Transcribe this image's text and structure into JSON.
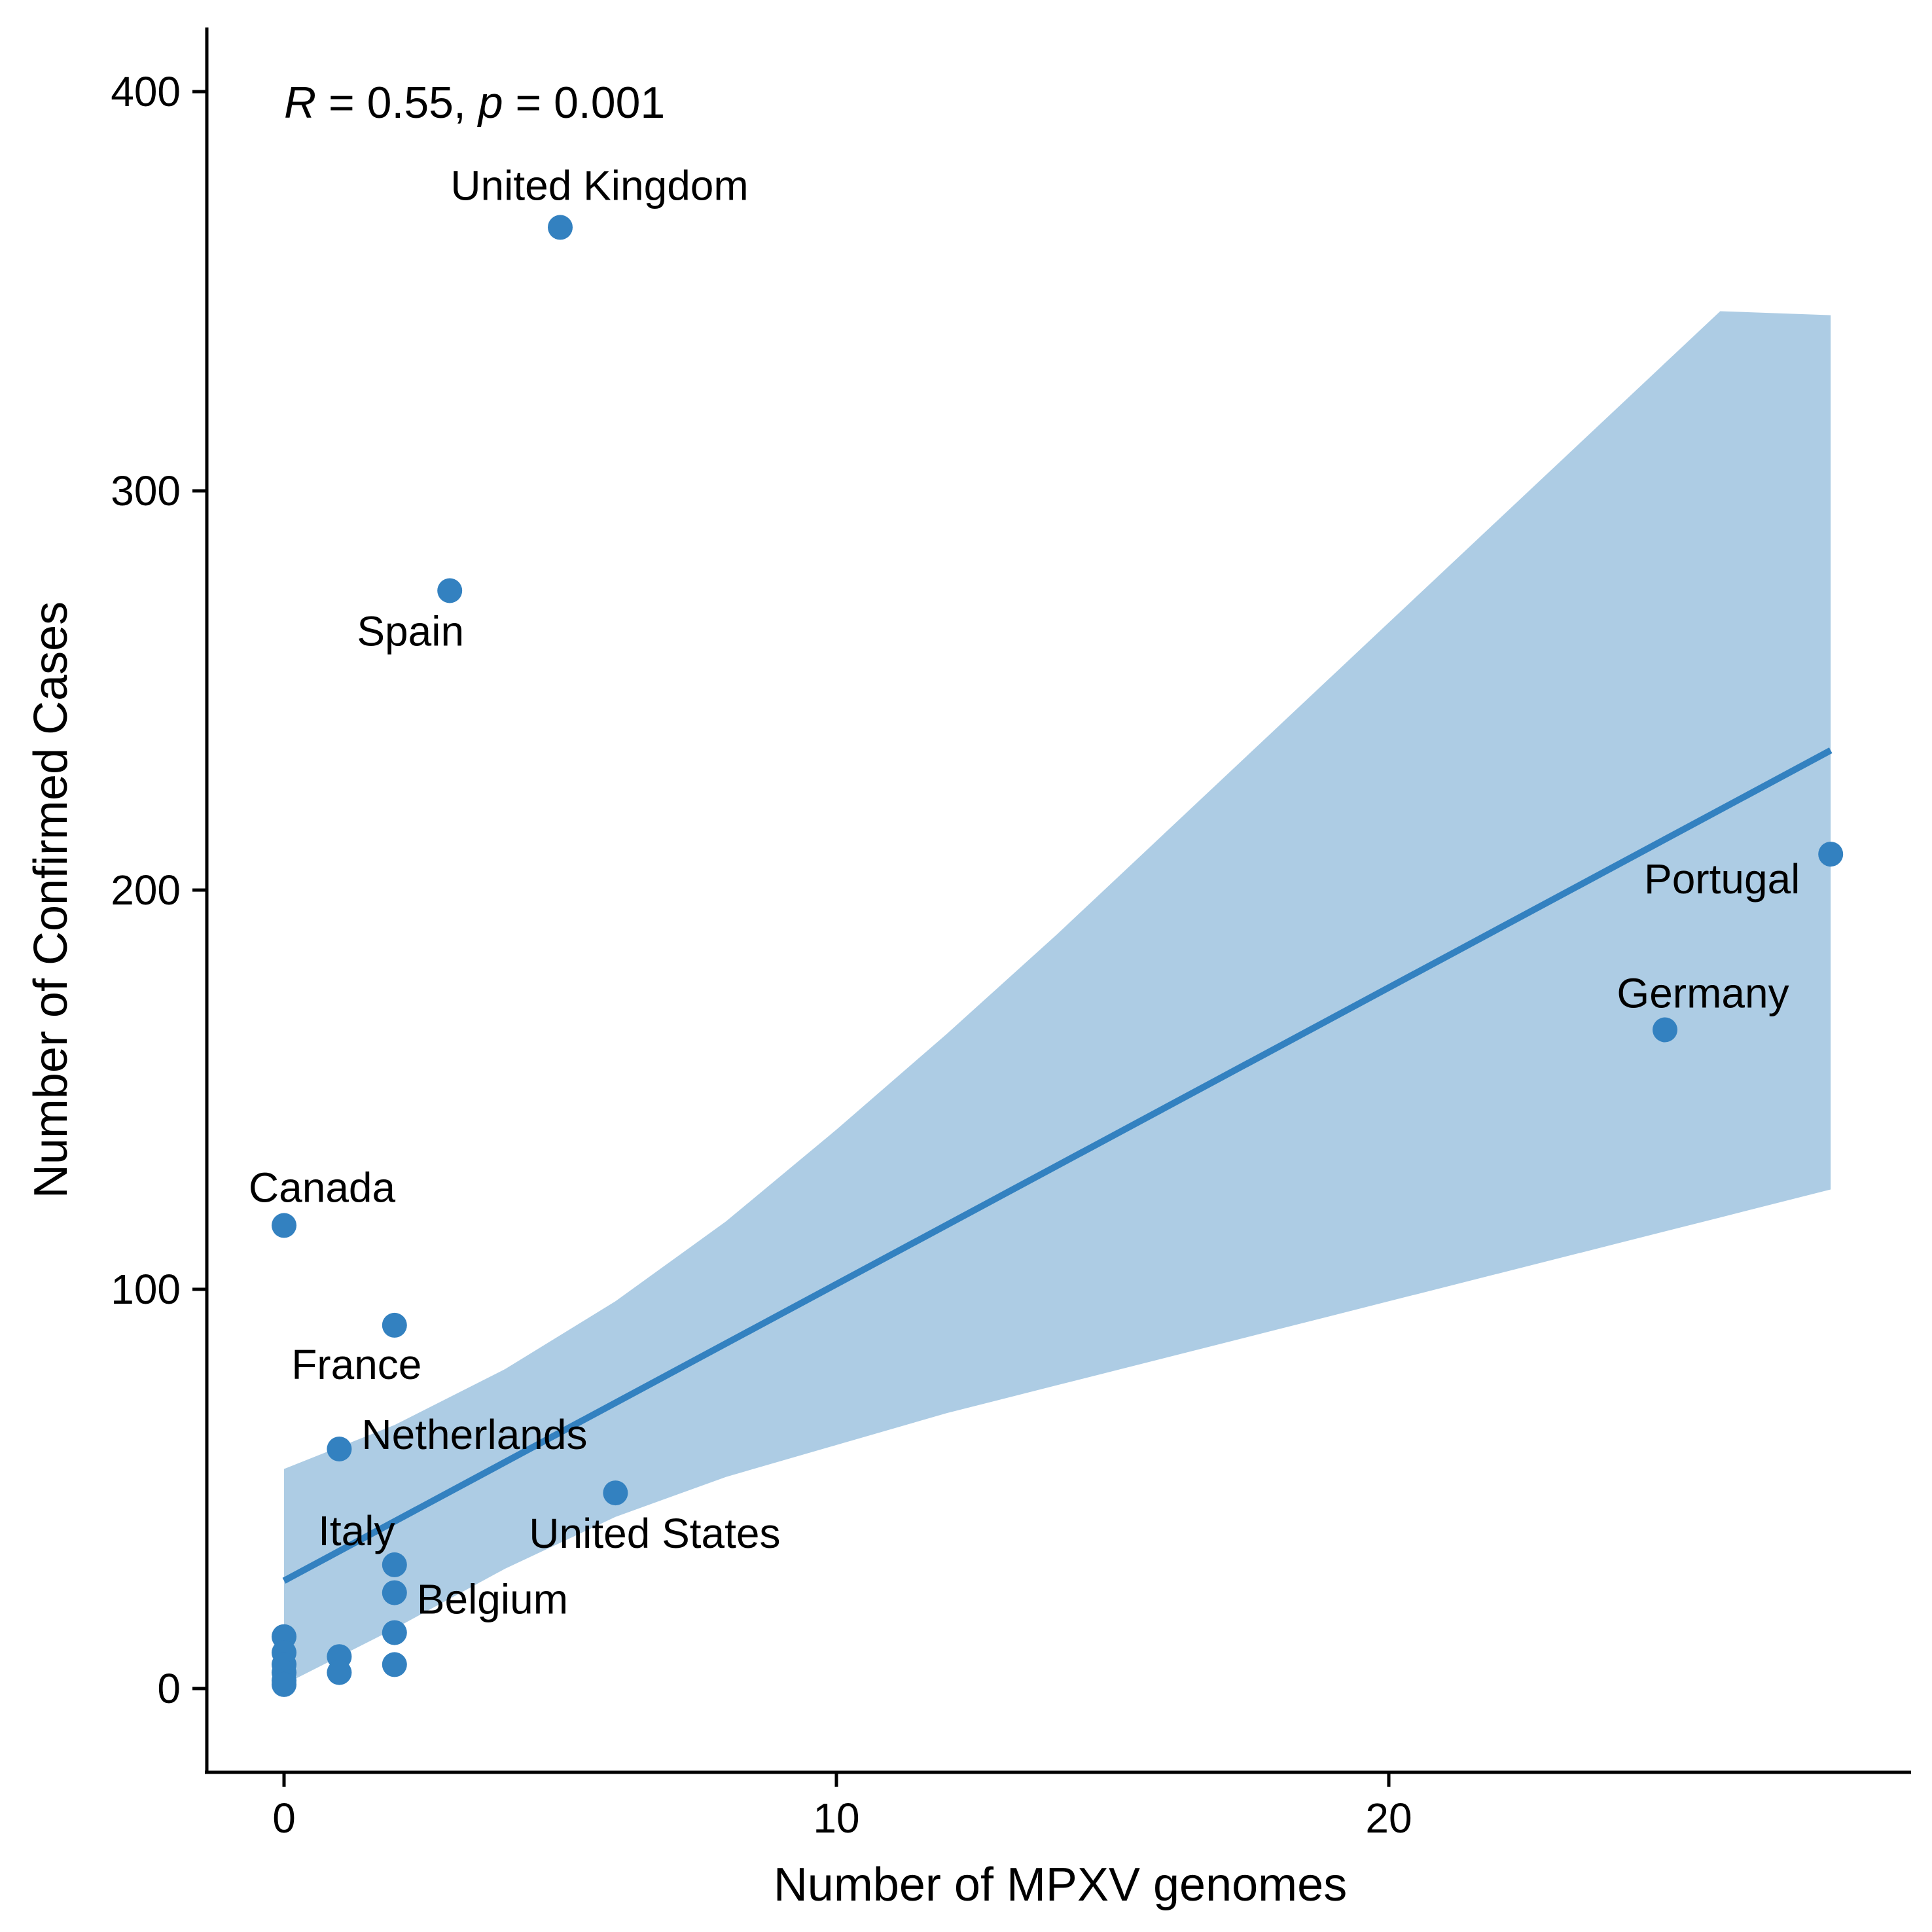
{
  "chart_data": {
    "type": "scatter",
    "title": "",
    "xlabel": "Number of MPXV genomes",
    "ylabel": "Number of Confirmed Cases",
    "xlim": [
      -1.4,
      29.3
    ],
    "ylim": [
      -21,
      416
    ],
    "x_ticks": [
      0,
      10,
      20
    ],
    "y_ticks": [
      0,
      100,
      200,
      300,
      400
    ],
    "grid": false,
    "legend": "none",
    "annotation": {
      "r_symbol": "R",
      "r_text": " = 0.55, ",
      "p_symbol": "p",
      "p_text": " = 0.001",
      "position": "top-left"
    },
    "colors": {
      "points": "#3381C0",
      "fit_line": "#3381C0",
      "ribbon": "#ADCCE4",
      "axis": "#000000"
    },
    "points": [
      {
        "x": 5,
        "y": 366,
        "label": "United Kingdom"
      },
      {
        "x": 3,
        "y": 275,
        "label": "Spain"
      },
      {
        "x": 28,
        "y": 209,
        "label": "Portugal"
      },
      {
        "x": 25,
        "y": 165,
        "label": "Germany"
      },
      {
        "x": 0,
        "y": 116,
        "label": "Canada"
      },
      {
        "x": 2,
        "y": 91,
        "label": "France"
      },
      {
        "x": 1,
        "y": 60,
        "label": "Netherlands"
      },
      {
        "x": 6,
        "y": 49,
        "label": "United States"
      },
      {
        "x": 2,
        "y": 31,
        "label": "Italy"
      },
      {
        "x": 2,
        "y": 24,
        "label": "Belgium"
      },
      {
        "x": 2,
        "y": 14,
        "label": ""
      },
      {
        "x": 2,
        "y": 6,
        "label": ""
      },
      {
        "x": 1,
        "y": 8,
        "label": ""
      },
      {
        "x": 1,
        "y": 4,
        "label": ""
      },
      {
        "x": 0,
        "y": 13,
        "label": ""
      },
      {
        "x": 0,
        "y": 9,
        "label": ""
      },
      {
        "x": 0,
        "y": 6,
        "label": ""
      },
      {
        "x": 0,
        "y": 4,
        "label": ""
      },
      {
        "x": 0,
        "y": 2,
        "label": ""
      },
      {
        "x": 0,
        "y": 1,
        "label": ""
      }
    ],
    "fit": {
      "line": [
        [
          0,
          27
        ],
        [
          28,
          235
        ]
      ],
      "band_upper": [
        [
          0,
          55
        ],
        [
          2,
          66
        ],
        [
          4,
          80
        ],
        [
          6,
          97
        ],
        [
          8,
          117
        ],
        [
          10,
          140
        ],
        [
          12,
          164
        ],
        [
          14,
          189
        ],
        [
          16,
          215
        ],
        [
          18,
          241
        ],
        [
          20,
          267
        ],
        [
          22,
          293
        ],
        [
          24,
          319
        ],
        [
          26,
          345
        ],
        [
          28,
          344
        ]
      ],
      "band_lower": [
        [
          0,
          1
        ],
        [
          2,
          15
        ],
        [
          4,
          30
        ],
        [
          6,
          43
        ],
        [
          8,
          53
        ],
        [
          10,
          61
        ],
        [
          12,
          69
        ],
        [
          14,
          76
        ],
        [
          16,
          83
        ],
        [
          18,
          90
        ],
        [
          20,
          97
        ],
        [
          22,
          104
        ],
        [
          24,
          111
        ],
        [
          26,
          118
        ],
        [
          28,
          125
        ]
      ]
    }
  }
}
